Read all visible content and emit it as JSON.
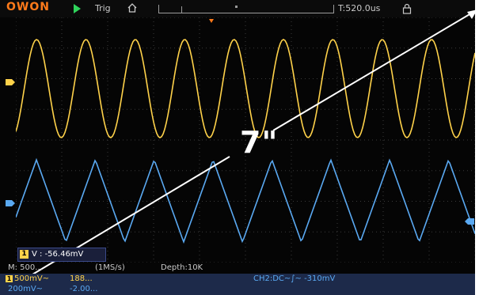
{
  "topbar": {
    "brand": "OWON",
    "trig_label": "Trig",
    "time_position": "T:520.0us",
    "icons": [
      "run-icon",
      "home-icon",
      "lock-icon"
    ]
  },
  "annotation": {
    "size_label": "7\""
  },
  "cursor": {
    "channel_badge": "1",
    "readout": "V : -56.46mV"
  },
  "status": {
    "timebase": "M: 500...",
    "sample_rate": "(1MS/s)",
    "depth": "Depth:10K"
  },
  "channels": {
    "ch1_badge": "1",
    "ch1_scale": "500mV~",
    "ch1_freq": "188...",
    "ch2_scale": "200mV~",
    "ch2_value": "-2.00...",
    "trigger_info": "CH2:DC~∫~ -310mV"
  },
  "colors": {
    "ch1": "#ffd24a",
    "ch2": "#5aa9f2",
    "brand": "#ff7a1a",
    "run": "#2fd35b",
    "grid": "#3a3a3a"
  }
}
